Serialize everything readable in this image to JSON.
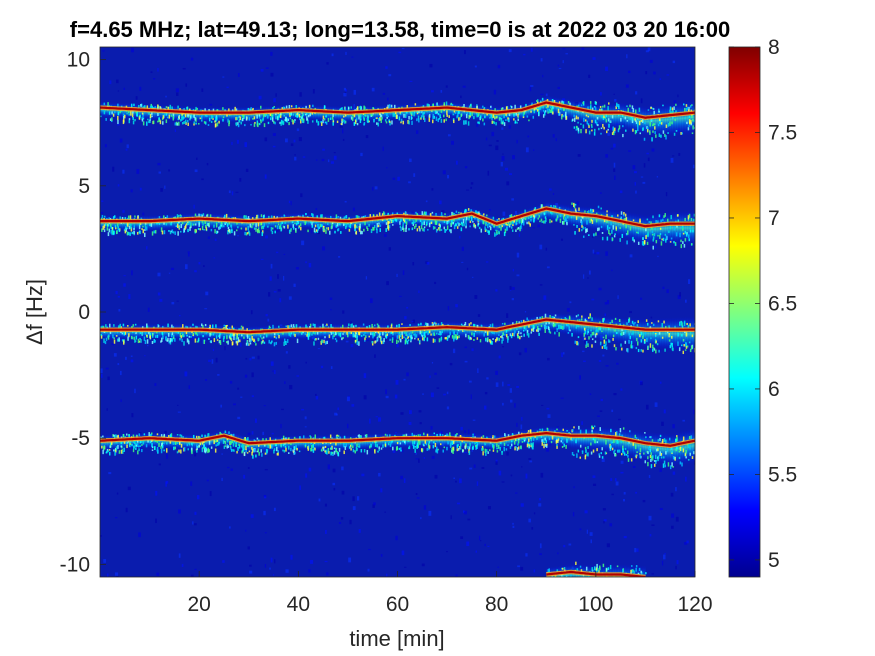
{
  "chart_data": {
    "type": "heatmap",
    "title": "f=4.65 MHz;  lat=49.13; long=13.58, time=0 is at 2022 03 20 16:00",
    "xlabel": "time [min]",
    "ylabel": "Δf [Hz]",
    "xlim": [
      0,
      120
    ],
    "ylim": [
      -10.5,
      10.5
    ],
    "xticks": [
      20,
      40,
      60,
      80,
      100,
      120
    ],
    "xtick_labels": [
      "20",
      "40",
      "60",
      "80",
      "100",
      "120"
    ],
    "yticks": [
      10,
      5,
      0,
      -5,
      -10
    ],
    "ytick_labels": [
      "10",
      "5",
      "0",
      "-5",
      "-10"
    ],
    "colormap": "jet",
    "color_range": [
      4.9,
      8
    ],
    "colorbar_ticks": [
      8,
      7.5,
      7,
      6.5,
      6,
      5.5,
      5
    ],
    "colorbar_tick_labels": [
      "8",
      "7.5",
      "7",
      "6.5",
      "6",
      "5.5",
      "5"
    ],
    "grid": false,
    "ridges": [
      {
        "t": [
          0,
          10,
          20,
          30,
          40,
          50,
          60,
          70,
          80,
          85,
          90,
          95,
          100,
          105,
          110,
          115,
          120
        ],
        "df": [
          8.1,
          8.0,
          7.9,
          7.9,
          8.0,
          7.9,
          8.0,
          8.1,
          7.9,
          8.0,
          8.3,
          8.1,
          7.9,
          7.9,
          7.7,
          7.8,
          7.9
        ]
      },
      {
        "t": [
          0,
          10,
          20,
          30,
          40,
          50,
          60,
          70,
          75,
          80,
          85,
          90,
          95,
          100,
          105,
          110,
          115,
          120
        ],
        "df": [
          3.6,
          3.6,
          3.7,
          3.6,
          3.7,
          3.6,
          3.8,
          3.7,
          3.9,
          3.5,
          3.8,
          4.1,
          3.9,
          3.8,
          3.6,
          3.4,
          3.5,
          3.5
        ]
      },
      {
        "t": [
          0,
          10,
          20,
          30,
          40,
          50,
          60,
          70,
          80,
          85,
          90,
          95,
          100,
          105,
          110,
          115,
          120
        ],
        "df": [
          -0.7,
          -0.7,
          -0.7,
          -0.8,
          -0.7,
          -0.7,
          -0.7,
          -0.6,
          -0.7,
          -0.5,
          -0.3,
          -0.4,
          -0.5,
          -0.6,
          -0.7,
          -0.7,
          -0.7
        ]
      },
      {
        "t": [
          0,
          10,
          20,
          25,
          30,
          40,
          50,
          60,
          70,
          80,
          85,
          90,
          95,
          100,
          105,
          110,
          115,
          120
        ],
        "df": [
          -5.1,
          -5.0,
          -5.1,
          -4.9,
          -5.2,
          -5.1,
          -5.1,
          -5.0,
          -5.0,
          -5.1,
          -4.9,
          -4.8,
          -4.9,
          -4.9,
          -5.0,
          -5.2,
          -5.3,
          -5.1
        ]
      },
      {
        "t": [
          90,
          95,
          100,
          105,
          110
        ],
        "df": [
          -10.4,
          -10.3,
          -10.4,
          -10.4,
          -10.5
        ]
      }
    ]
  }
}
